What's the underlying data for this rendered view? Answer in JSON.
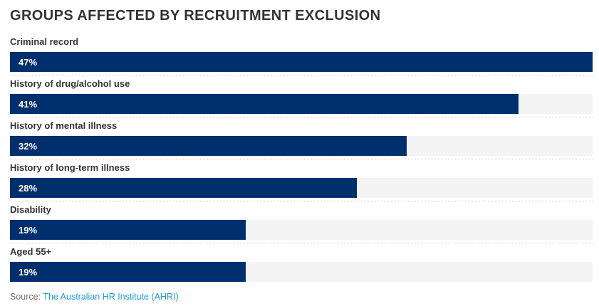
{
  "title": "GROUPS AFFECTED BY RECRUITMENT EXCLUSION",
  "source": {
    "prefix": "Source: ",
    "link_text": "The Australian HR Institute (AHRI)"
  },
  "colors": {
    "bar_fill": "#002f6d",
    "bar_track": "#f4f4f4",
    "title_text": "#333333",
    "label_text": "#333333",
    "value_text": "#ffffff",
    "separator": "#cccccc",
    "source_text": "#6e6e6e",
    "link": "#1e9cd7"
  },
  "chart_data": {
    "type": "bar",
    "orientation": "horizontal",
    "title": "GROUPS AFFECTED BY RECRUITMENT EXCLUSION",
    "categories": [
      "Criminal record",
      "History of drug/alcohol use",
      "History of mental illness",
      "History of long-term illness",
      "Disability",
      "Aged 55+"
    ],
    "values": [
      47,
      41,
      32,
      28,
      19,
      19
    ],
    "value_labels": [
      "47%",
      "41%",
      "32%",
      "28%",
      "19%",
      "19%"
    ],
    "unit": "%",
    "xlim": [
      0,
      47
    ],
    "grid": false,
    "legend": false,
    "value_label_position": "inside-left",
    "category_label_position": "above-bar"
  }
}
